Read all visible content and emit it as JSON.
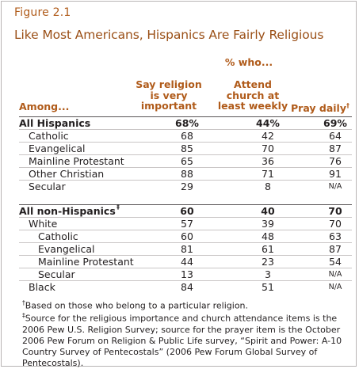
{
  "figure_label": "Figure 2.1",
  "title": "Like Most Americans, Hispanics Are Fairly Religious",
  "headers": {
    "pct_who": "% who...",
    "among": "Among...",
    "religion_line1": "Say religion",
    "religion_line2": "is very",
    "religion_line3": "important",
    "church_line1": "Attend",
    "church_line2": "church at",
    "church_line3": "least weekly",
    "pray": "Pray daily",
    "pray_mark": "†"
  },
  "rows": [
    {
      "label": "All Hispanics",
      "mark": "",
      "v1": "68%",
      "v2": "44%",
      "v3": "69%"
    },
    {
      "label": "Catholic",
      "mark": "",
      "v1": "68",
      "v2": "42",
      "v3": "64"
    },
    {
      "label": "Evangelical",
      "mark": "",
      "v1": "85",
      "v2": "70",
      "v3": "87"
    },
    {
      "label": "Mainline Protestant",
      "mark": "",
      "v1": "65",
      "v2": "36",
      "v3": "76"
    },
    {
      "label": "Other Christian",
      "mark": "",
      "v1": "88",
      "v2": "71",
      "v3": "91"
    },
    {
      "label": "Secular",
      "mark": "",
      "v1": "29",
      "v2": "8",
      "v3": "N/A"
    },
    {
      "label": "All non-Hispanics",
      "mark": "‡",
      "v1": "60",
      "v2": "40",
      "v3": "70"
    },
    {
      "label": "White",
      "mark": "",
      "v1": "57",
      "v2": "39",
      "v3": "70"
    },
    {
      "label": "Catholic",
      "mark": "",
      "v1": "60",
      "v2": "48",
      "v3": "63"
    },
    {
      "label": "Evangelical",
      "mark": "",
      "v1": "81",
      "v2": "61",
      "v3": "87"
    },
    {
      "label": "Mainline Protestant",
      "mark": "",
      "v1": "44",
      "v2": "23",
      "v3": "54"
    },
    {
      "label": "Secular",
      "mark": "",
      "v1": "13",
      "v2": "3",
      "v3": "N/A"
    },
    {
      "label": "Black",
      "mark": "",
      "v1": "84",
      "v2": "51",
      "v3": "N/A"
    }
  ],
  "notes": {
    "note1_mark": "†",
    "note1": "Based on those who belong to a particular religion.",
    "note2_mark": "‡",
    "note2": "Source for the religious importance and church attendance items is the 2006 Pew U.S. Religion Survey; source for the prayer item is the October 2006 Pew Forum on Religion & Public Life survey, “Spirit and Power: A-10 Country Survey of Pentecostals” (2006 Pew Forum Global Survey of Pentecostals)."
  }
}
